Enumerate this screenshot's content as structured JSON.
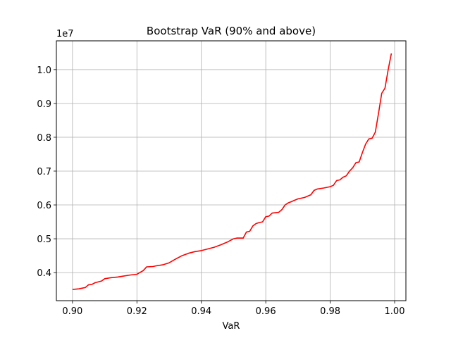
{
  "chart_data": {
    "type": "line",
    "title": "Bootstrap VaR (90% and above)",
    "xlabel": "VaR",
    "ylabel": "",
    "y_offset_label": "1e7",
    "xlim": [
      0.895,
      1.0035
    ],
    "ylim": [
      3.17,
      10.85
    ],
    "x_ticks": [
      0.9,
      0.92,
      0.94,
      0.96,
      0.98,
      1.0
    ],
    "x_tick_labels": [
      "0.90",
      "0.92",
      "0.94",
      "0.96",
      "0.98",
      "1.00"
    ],
    "y_ticks": [
      4,
      5,
      6,
      7,
      8,
      9,
      10
    ],
    "y_tick_labels": [
      "0.4",
      "0.5",
      "0.6",
      "0.7",
      "0.8",
      "0.9",
      "1.0"
    ],
    "grid": true,
    "series": [
      {
        "color": "#ff0000",
        "x": [
          0.9,
          0.902,
          0.904,
          0.905,
          0.906,
          0.907,
          0.909,
          0.91,
          0.912,
          0.914,
          0.916,
          0.918,
          0.92,
          0.922,
          0.923,
          0.925,
          0.926,
          0.928,
          0.93,
          0.932,
          0.934,
          0.936,
          0.938,
          0.94,
          0.942,
          0.944,
          0.946,
          0.948,
          0.95,
          0.951,
          0.953,
          0.954,
          0.955,
          0.956,
          0.957,
          0.958,
          0.959,
          0.96,
          0.961,
          0.962,
          0.964,
          0.965,
          0.966,
          0.967,
          0.968,
          0.97,
          0.972,
          0.974,
          0.975,
          0.976,
          0.978,
          0.98,
          0.981,
          0.982,
          0.983,
          0.984,
          0.985,
          0.986,
          0.987,
          0.988,
          0.989,
          0.99,
          0.991,
          0.992,
          0.993,
          0.994,
          0.995,
          0.996,
          0.997,
          0.998,
          0.999
        ],
        "y": [
          3.5,
          3.52,
          3.56,
          3.64,
          3.65,
          3.7,
          3.75,
          3.82,
          3.85,
          3.87,
          3.9,
          3.93,
          3.95,
          4.06,
          4.17,
          4.18,
          4.2,
          4.23,
          4.29,
          4.4,
          4.5,
          4.57,
          4.62,
          4.65,
          4.7,
          4.75,
          4.82,
          4.9,
          5.0,
          5.02,
          5.02,
          5.2,
          5.22,
          5.38,
          5.45,
          5.48,
          5.5,
          5.65,
          5.67,
          5.76,
          5.78,
          5.86,
          6.0,
          6.06,
          6.1,
          6.18,
          6.22,
          6.3,
          6.43,
          6.47,
          6.5,
          6.54,
          6.58,
          6.72,
          6.74,
          6.82,
          6.86,
          7.0,
          7.1,
          7.25,
          7.27,
          7.55,
          7.8,
          7.95,
          7.97,
          8.15,
          8.7,
          9.3,
          9.45,
          10.0,
          10.48
        ]
      }
    ]
  }
}
